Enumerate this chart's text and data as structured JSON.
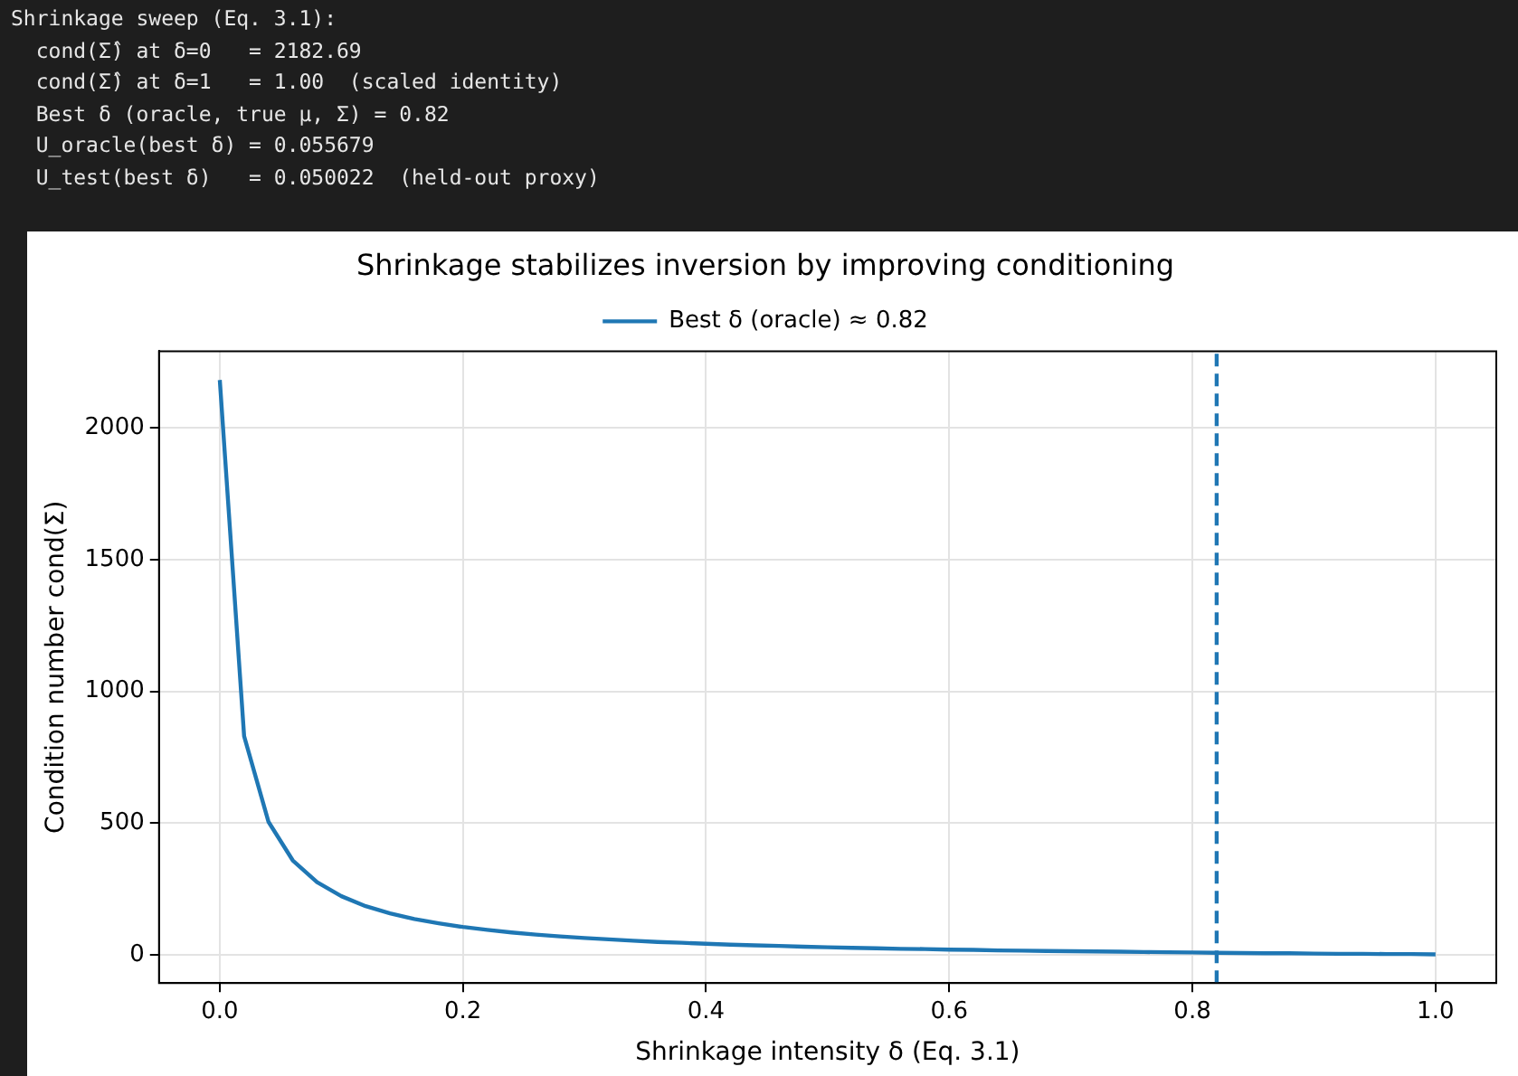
{
  "chart_data": {
    "type": "line",
    "title": "Shrinkage stabilizes inversion by improving conditioning",
    "xlabel": "Shrinkage intensity δ (Eq. 3.1)",
    "ylabel": "Condition number cond(Σ)",
    "annotations": [
      "Shrinkage sweep (Eq. 3.1):",
      "  cond(Σ̂) at δ=0   = 2182.69",
      "  cond(Σ̂) at δ=1   = 1.00  (scaled identity)",
      "  Best δ (oracle, true μ, Σ) = 0.82",
      "  U_oracle(best δ) = 0.055679",
      "  U_test(best δ)   = 0.050022  (held-out proxy)"
    ],
    "x": [
      0,
      0.02,
      0.04,
      0.06,
      0.08,
      0.1,
      0.12,
      0.14,
      0.16,
      0.18,
      0.2,
      0.22,
      0.24,
      0.26,
      0.28,
      0.3,
      0.32,
      0.34,
      0.36,
      0.38,
      0.4,
      0.42,
      0.44,
      0.46,
      0.48,
      0.5,
      0.52,
      0.54,
      0.56,
      0.58,
      0.6,
      0.62,
      0.64,
      0.66,
      0.68,
      0.7,
      0.72,
      0.74,
      0.76,
      0.78,
      0.8,
      0.82,
      0.84,
      0.86,
      0.88,
      0.9,
      0.92,
      0.94,
      0.96,
      0.98,
      1
    ],
    "series": [
      {
        "color": "#1f77b4",
        "values": [
          2182.69,
          830,
          505,
          358,
          275,
          222,
          184,
          157,
          135,
          119,
          105,
          94,
          84,
          76,
          69,
          63,
          58,
          53,
          48,
          45,
          41,
          38,
          35,
          33,
          30,
          28,
          26,
          24,
          22,
          21,
          19,
          18,
          16,
          15,
          14,
          13,
          12,
          11,
          10,
          9,
          8,
          7,
          6,
          5,
          5,
          4,
          3,
          3,
          2,
          2,
          1
        ]
      }
    ],
    "xlim": [
      -0.05,
      1.05
    ],
    "ylim": [
      -108,
      2292
    ],
    "xticks": [
      {
        "value": 0,
        "label": "0.0"
      },
      {
        "value": 0.2,
        "label": "0.2"
      },
      {
        "value": 0.4,
        "label": "0.4"
      },
      {
        "value": 0.6,
        "label": "0.6"
      },
      {
        "value": 0.8,
        "label": "0.8"
      },
      {
        "value": 1,
        "label": "1.0"
      }
    ],
    "yticks": [
      0,
      500,
      1000,
      1500,
      2000
    ],
    "ref_lines": [
      {
        "axis": "x",
        "value": 0.82,
        "label": "Best δ (oracle) ≈ 0.82",
        "color": "#1f77b4",
        "line_style": "dashed"
      }
    ],
    "grid": true,
    "legend": "top",
    "marker": "none",
    "line_style": "solid"
  }
}
